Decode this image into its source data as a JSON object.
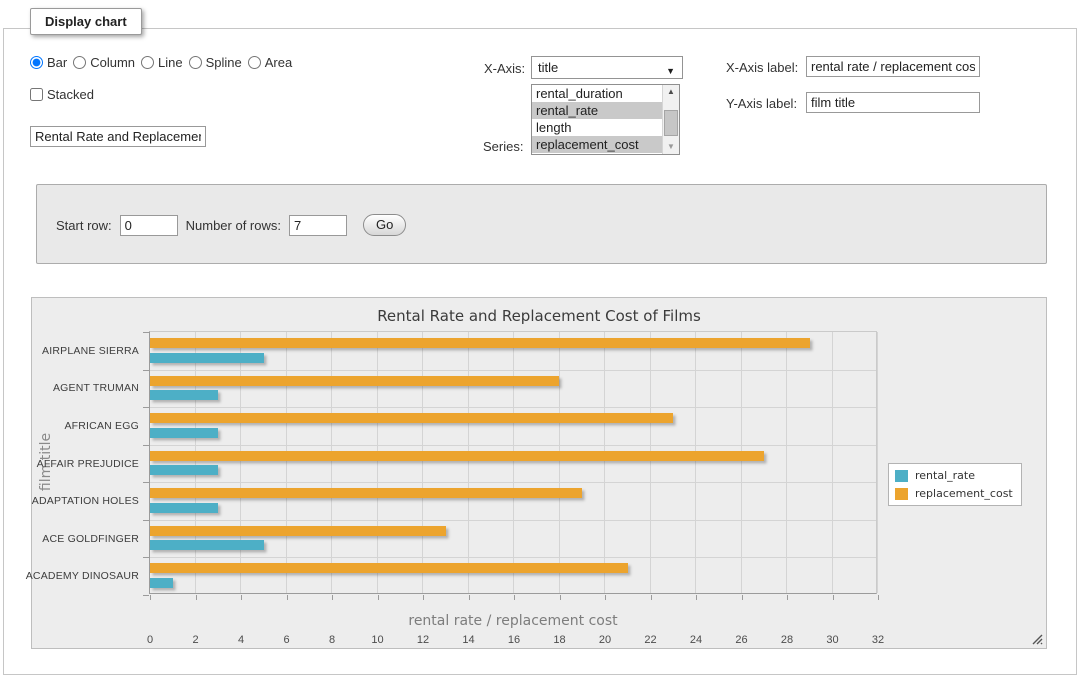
{
  "panel": {
    "legend": "Display chart"
  },
  "controls": {
    "chart_types": [
      "Bar",
      "Column",
      "Line",
      "Spline",
      "Area"
    ],
    "selected_chart_type": "Bar",
    "stacked_label": "Stacked",
    "stacked_checked": false,
    "chart_title_value": "Rental Rate and Replacement Cost of Films",
    "x_axis_select_label": "X-Axis:",
    "x_axis_selected_value": "title",
    "series_list_label": "Series:",
    "series_options": [
      {
        "label": "rental_duration",
        "selected": false
      },
      {
        "label": "rental_rate",
        "selected": true
      },
      {
        "label": "length",
        "selected": false
      },
      {
        "label": "replacement_cost",
        "selected": true
      }
    ],
    "x_axis_label_field": {
      "label": "X-Axis label:",
      "value": "rental rate / replacement cost"
    },
    "y_axis_label_field": {
      "label": "Y-Axis label:",
      "value": "film title"
    }
  },
  "row_panel": {
    "start_row_label": "Start row:",
    "start_row_value": "0",
    "num_rows_label": "Number of rows:",
    "num_rows_value": "7",
    "go_label": "Go"
  },
  "chart_data": {
    "type": "bar",
    "orientation": "horizontal",
    "title": "Rental Rate and Replacement Cost of Films",
    "xlabel": "rental rate / replacement cost",
    "ylabel": "film title",
    "categories": [
      "AIRPLANE SIERRA",
      "AGENT TRUMAN",
      "AFRICAN EGG",
      "AFFAIR PREJUDICE",
      "ADAPTATION HOLES",
      "ACE GOLDFINGER",
      "ACADEMY DINOSAUR"
    ],
    "series": [
      {
        "name": "rental_rate",
        "color": "#4dafc6",
        "values": [
          4.99,
          2.99,
          2.99,
          2.99,
          2.99,
          4.99,
          0.99
        ]
      },
      {
        "name": "replacement_cost",
        "color": "#eca42e",
        "values": [
          28.99,
          17.99,
          22.99,
          26.99,
          18.99,
          12.99,
          20.99
        ]
      }
    ],
    "value_axis": {
      "min": 0,
      "max": 32,
      "tick_step": 2
    },
    "grid": true,
    "legend_position": "right"
  },
  "colors": {
    "rental_rate": "#4dafc6",
    "replacement_cost": "#eca42e",
    "chart_background": "#ededed",
    "panel_background": "#e9e9e9"
  }
}
